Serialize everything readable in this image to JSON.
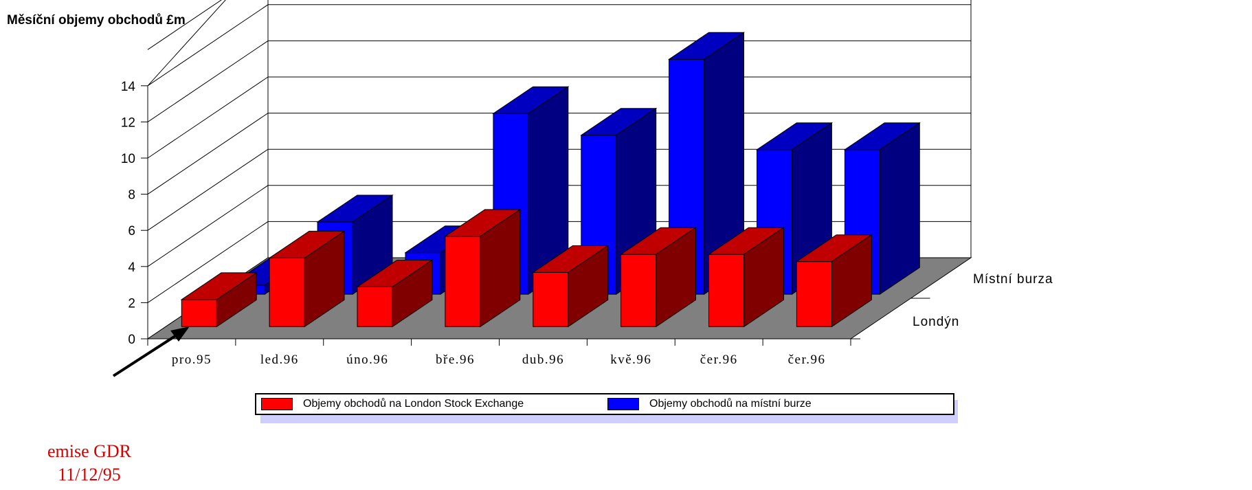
{
  "chart_data": {
    "type": "bar",
    "title": "Měsíční objemy obchodů £m",
    "categories": [
      "pro.95",
      "led.96",
      "úno.96",
      "bře.96",
      "dub.96",
      "kvě.96",
      "čer.96",
      "čer.96"
    ],
    "depth_labels": [
      "Londýn",
      "Místní burza"
    ],
    "series": [
      {
        "name": "Objemy obchodů na London Stock Exchange",
        "values": [
          1.5,
          3.8,
          2.2,
          5.0,
          3.0,
          4.0,
          4.0,
          3.6
        ],
        "color": "#ff0000"
      },
      {
        "name": "Objemy obchodů na místní burze",
        "values": [
          0.5,
          4.0,
          2.3,
          10.0,
          8.8,
          13.0,
          8.0,
          8.0
        ],
        "color": "#0000ff"
      }
    ],
    "ylim": [
      0,
      14
    ],
    "yticks": [
      "0",
      "2",
      "4",
      "6",
      "8",
      "10",
      "12",
      "14"
    ],
    "grid": true,
    "legend": "bottom",
    "annotation": {
      "line1": "emise GDR",
      "line2": "11/12/95"
    }
  },
  "colors": {
    "red_front": "#ff0000",
    "red_top": "#c00000",
    "red_side": "#800000",
    "blue_front": "#0000ff",
    "blue_top": "#0000c0",
    "blue_side": "#000080",
    "floor": "#808080",
    "annotation": "#d40000",
    "legend_shadow": "#cfcfff"
  }
}
